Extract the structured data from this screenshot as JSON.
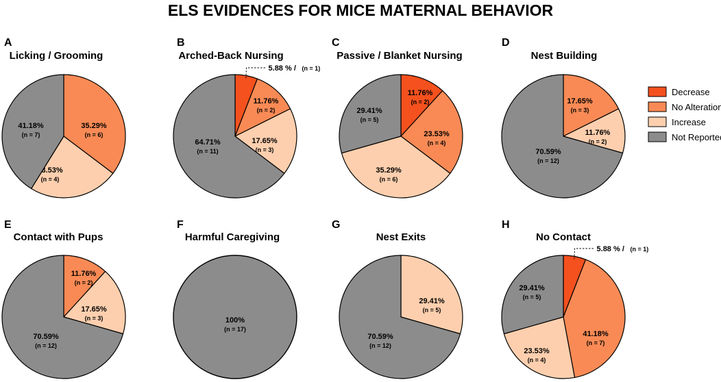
{
  "title": "ELS EVIDENCES FOR MICE MATERNAL BEHAVIOR",
  "colors": {
    "Decrease": "#f4511e",
    "No Alteration": "#f98a55",
    "Increase": "#fdcfae",
    "Not Reported": "#8c8c8c"
  },
  "legend": [
    "Decrease",
    "No Alteration",
    "Increase",
    "Not Reported"
  ],
  "chart_data": [
    {
      "type": "pie",
      "panel": "A",
      "title": "Licking / Grooming",
      "slices": [
        {
          "category": "No Alteration",
          "value": 35.29,
          "label": "35.29%",
          "n": "(n = 6)"
        },
        {
          "category": "Increase",
          "value": 23.53,
          "label": "23.53%",
          "n": "(n = 4)"
        },
        {
          "category": "Not Reported",
          "value": 41.18,
          "label": "41.18%",
          "n": "(n = 7)"
        }
      ]
    },
    {
      "type": "pie",
      "panel": "B",
      "title": "Arched-Back Nursing",
      "slices": [
        {
          "category": "Decrease",
          "value": 5.88,
          "label": "5.88 % /",
          "n": "(n = 1)",
          "callout": true
        },
        {
          "category": "No Alteration",
          "value": 11.76,
          "label": "11.76%",
          "n": "(n = 2)"
        },
        {
          "category": "Increase",
          "value": 17.65,
          "label": "17.65%",
          "n": "(n = 3)"
        },
        {
          "category": "Not Reported",
          "value": 64.71,
          "label": "64.71%",
          "n": "(n = 11)"
        }
      ]
    },
    {
      "type": "pie",
      "panel": "C",
      "title": "Passive / Blanket Nursing",
      "slices": [
        {
          "category": "Decrease",
          "value": 11.76,
          "label": "11.76%",
          "n": "(n = 2)"
        },
        {
          "category": "No Alteration",
          "value": 23.53,
          "label": "23.53%",
          "n": "(n = 4)"
        },
        {
          "category": "Increase",
          "value": 35.29,
          "label": "35.29%",
          "n": "(n = 6)"
        },
        {
          "category": "Not Reported",
          "value": 29.41,
          "label": "29.41%",
          "n": "(n = 5)"
        }
      ]
    },
    {
      "type": "pie",
      "panel": "D",
      "title": "Nest Building",
      "slices": [
        {
          "category": "No Alteration",
          "value": 17.65,
          "label": "17.65%",
          "n": "(n = 3)"
        },
        {
          "category": "Increase",
          "value": 11.76,
          "label": "11.76%",
          "n": "(n = 2)"
        },
        {
          "category": "Not Reported",
          "value": 70.59,
          "label": "70.59%",
          "n": "(n = 12)"
        }
      ]
    },
    {
      "type": "pie",
      "panel": "E",
      "title": "Contact with Pups",
      "slices": [
        {
          "category": "No Alteration",
          "value": 11.76,
          "label": "11.76%",
          "n": "(n = 2)"
        },
        {
          "category": "Increase",
          "value": 17.65,
          "label": "17.65%",
          "n": "(n = 3)"
        },
        {
          "category": "Not Reported",
          "value": 70.59,
          "label": "70.59%",
          "n": "(n = 12)"
        }
      ]
    },
    {
      "type": "pie",
      "panel": "F",
      "title": "Harmful Caregiving",
      "slices": [
        {
          "category": "Not Reported",
          "value": 100,
          "label": "100%",
          "n": "(n = 17)"
        }
      ]
    },
    {
      "type": "pie",
      "panel": "G",
      "title": "Nest Exits",
      "slices": [
        {
          "category": "Increase",
          "value": 29.41,
          "label": "29.41%",
          "n": "(n = 5)"
        },
        {
          "category": "Not Reported",
          "value": 70.59,
          "label": "70.59%",
          "n": "(n = 12)"
        }
      ]
    },
    {
      "type": "pie",
      "panel": "H",
      "title": "No Contact",
      "slices": [
        {
          "category": "Decrease",
          "value": 5.88,
          "label": "5.88 % /",
          "n": "(n = 1)",
          "callout": true
        },
        {
          "category": "No Alteration",
          "value": 41.18,
          "label": "41.18%",
          "n": "(n = 7)"
        },
        {
          "category": "Increase",
          "value": 23.53,
          "label": "23.53%",
          "n": "(n = 4)"
        },
        {
          "category": "Not Reported",
          "value": 29.41,
          "label": "29.41%",
          "n": "(n = 5)"
        }
      ]
    }
  ]
}
